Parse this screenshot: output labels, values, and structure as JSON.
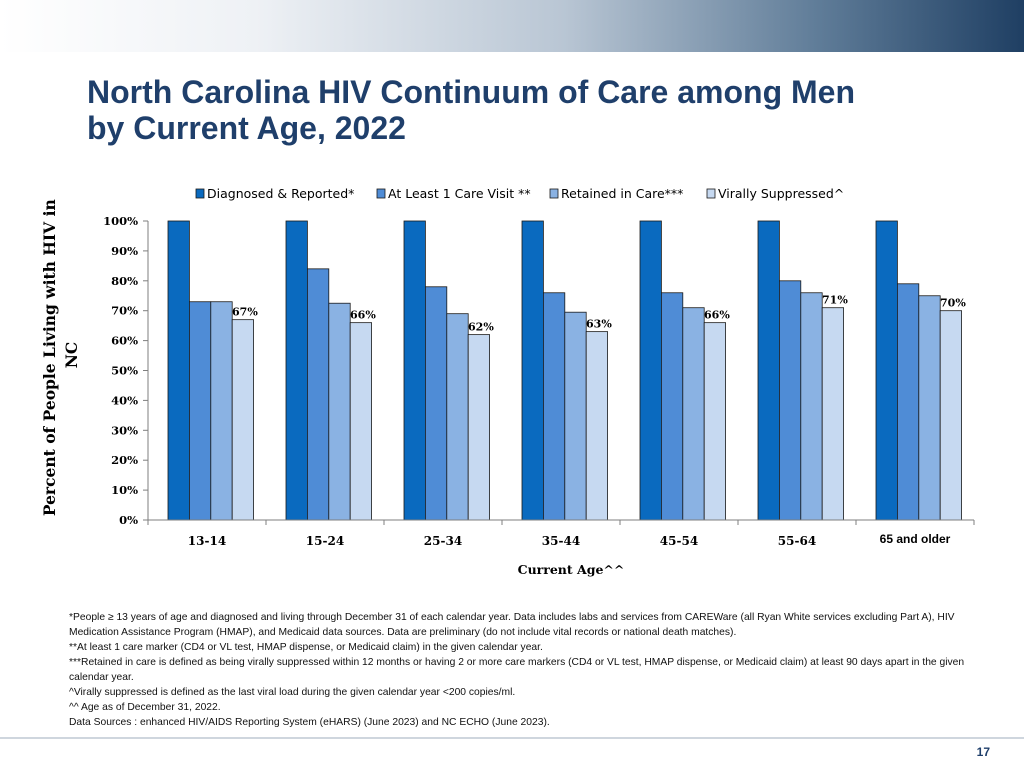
{
  "slide": {
    "title_line1": "North Carolina HIV Continuum of Care among Men",
    "title_line2": "by Current Age, 2022",
    "page_number": "17",
    "colors": {
      "title": "#1f3f6b",
      "band_dark": "#1f3f63"
    }
  },
  "chart_data": {
    "type": "bar",
    "title": "",
    "xlabel": "Current Age^^",
    "ylabel": "Percent of People Living with HIV in NC",
    "ylim": [
      0,
      100
    ],
    "yticks": [
      "0%",
      "10%",
      "20%",
      "30%",
      "40%",
      "50%",
      "60%",
      "70%",
      "80%",
      "90%",
      "100%"
    ],
    "legend_position": "top",
    "categories": [
      "13-14",
      "15-24",
      "25-34",
      "35-44",
      "45-54",
      "55-64",
      "65 and older"
    ],
    "series": [
      {
        "name": "Diagnosed & Reported*",
        "color": "#0a6abf",
        "values": [
          100,
          100,
          100,
          100,
          100,
          100,
          100
        ]
      },
      {
        "name": "At Least 1 Care Visit **",
        "color": "#4f8cd6",
        "values": [
          73,
          84,
          78,
          76,
          76,
          80,
          79
        ]
      },
      {
        "name": "Retained in Care***",
        "color": "#8ab2e3",
        "values": [
          73,
          72.5,
          69,
          69.5,
          71,
          76,
          75
        ]
      },
      {
        "name": "Virally Suppressed^",
        "color": "#c6d9f1",
        "values": [
          67,
          66,
          62,
          63,
          66,
          71,
          70
        ]
      }
    ],
    "data_labels": [
      "67%",
      "66%",
      "62%",
      "63%",
      "66%",
      "71%",
      "70%"
    ]
  },
  "footnotes": [
    "*People ≥ 13 years of age and diagnosed and living through December 31 of each calendar year. Data includes labs and services from CAREWare (all Ryan White services excluding Part A), HIV Medication Assistance Program (HMAP), and Medicaid data sources. Data are preliminary (do not include vital records or national death matches).",
    "**At least 1 care marker (CD4 or VL test, HMAP dispense, or Medicaid claim) in the given calendar year.",
    "***Retained in care is defined as being virally suppressed within 12 months or having 2 or more care markers (CD4 or VL test, HMAP dispense, or Medicaid claim) at least 90 days apart in the given calendar year.",
    "^Virally suppressed is defined as the last viral load during the given calendar year <200 copies/ml.",
    "^^ Age as of December 31, 2022.",
    "Data Sources : enhanced HIV/AIDS Reporting System (eHARS) (June 2023) and NC ECHO (June 2023)."
  ]
}
